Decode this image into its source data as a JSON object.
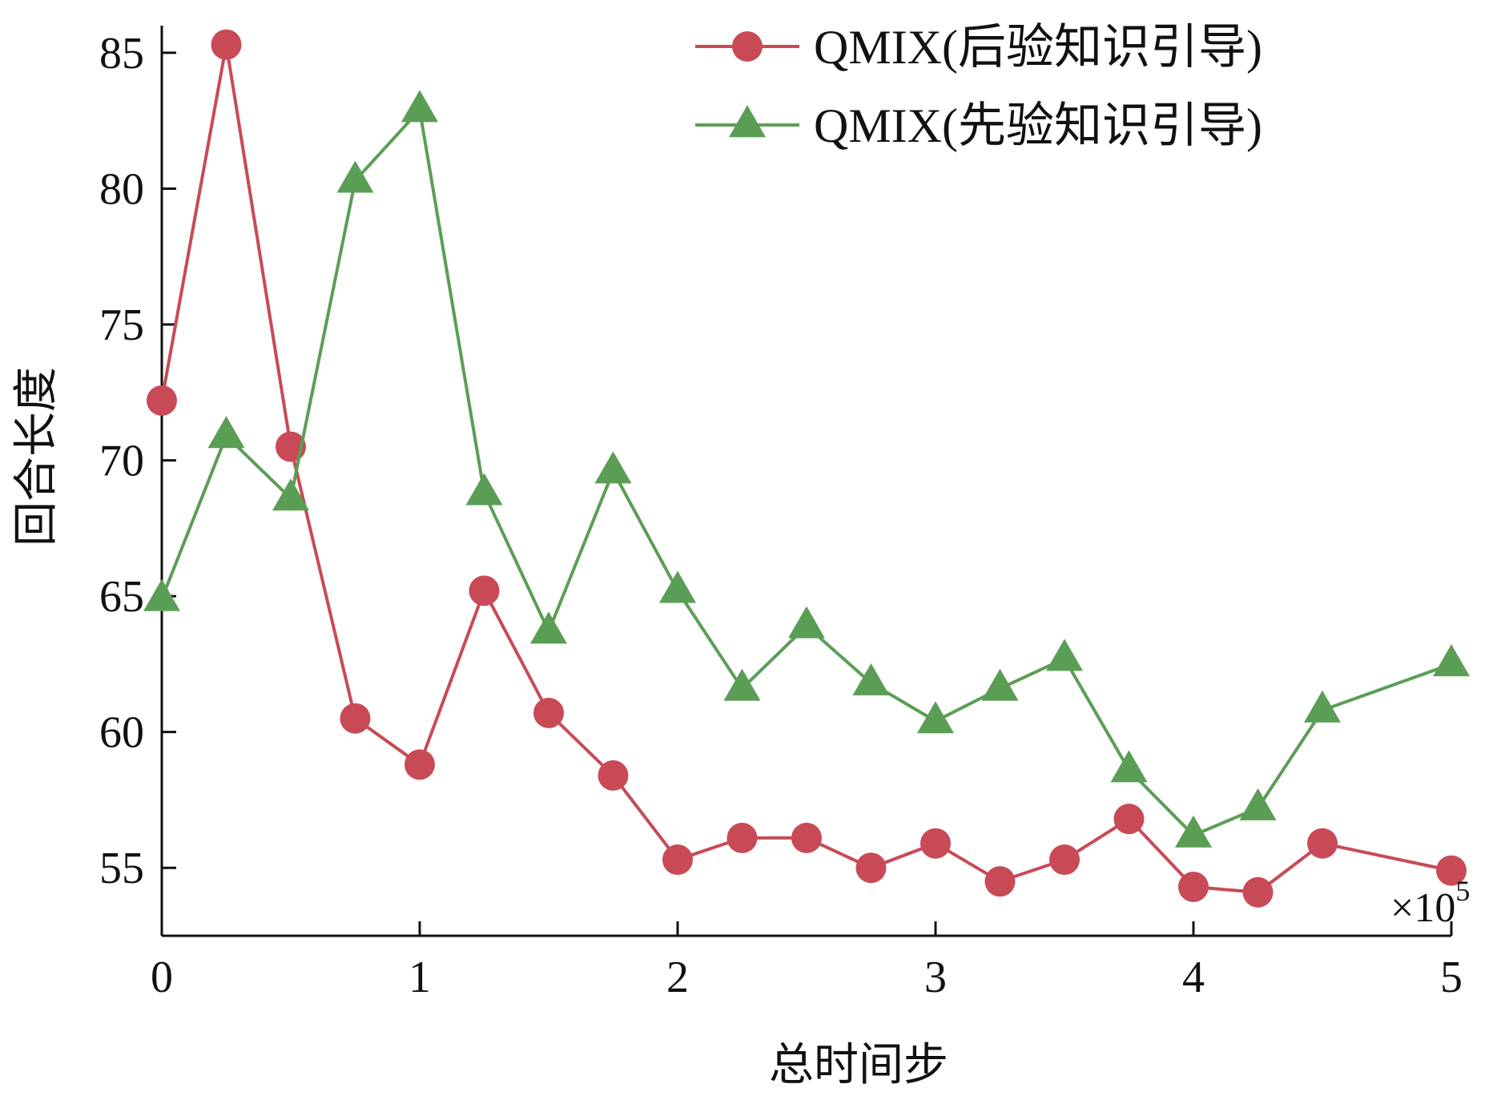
{
  "chart_data": {
    "type": "line",
    "x_multiplier": "×10",
    "x_multiplier_exp": "5",
    "xlabel": "总时间步",
    "ylabel": "回合长度",
    "xlim": [
      0,
      5
    ],
    "ylim": [
      52.5,
      86
    ],
    "x_ticks": [
      0,
      1,
      2,
      3,
      4,
      5
    ],
    "y_ticks": [
      55,
      60,
      65,
      70,
      75,
      80,
      85
    ],
    "legend_position": "top-right",
    "x": [
      0,
      0.25,
      0.5,
      0.75,
      1.0,
      1.25,
      1.5,
      1.75,
      2.0,
      2.25,
      2.5,
      2.75,
      3.0,
      3.25,
      3.5,
      3.75,
      4.0,
      4.25,
      4.5,
      5.0
    ],
    "series": [
      {
        "name": "QMIX(后验知识引导)",
        "color": "#c84a57",
        "marker": "circle",
        "values": [
          72.2,
          85.3,
          70.5,
          60.5,
          58.8,
          65.2,
          60.7,
          58.4,
          55.3,
          56.1,
          56.1,
          55.0,
          55.9,
          54.5,
          55.3,
          56.8,
          54.3,
          54.1,
          55.9,
          54.9
        ]
      },
      {
        "name": "QMIX(先验知识引导)",
        "color": "#5a9e55",
        "marker": "triangle",
        "values": [
          64.9,
          70.9,
          68.6,
          80.3,
          82.9,
          68.8,
          63.7,
          69.6,
          65.2,
          61.6,
          63.9,
          61.8,
          60.4,
          61.6,
          62.7,
          58.6,
          56.2,
          57.2,
          60.8,
          62.5
        ]
      }
    ]
  }
}
